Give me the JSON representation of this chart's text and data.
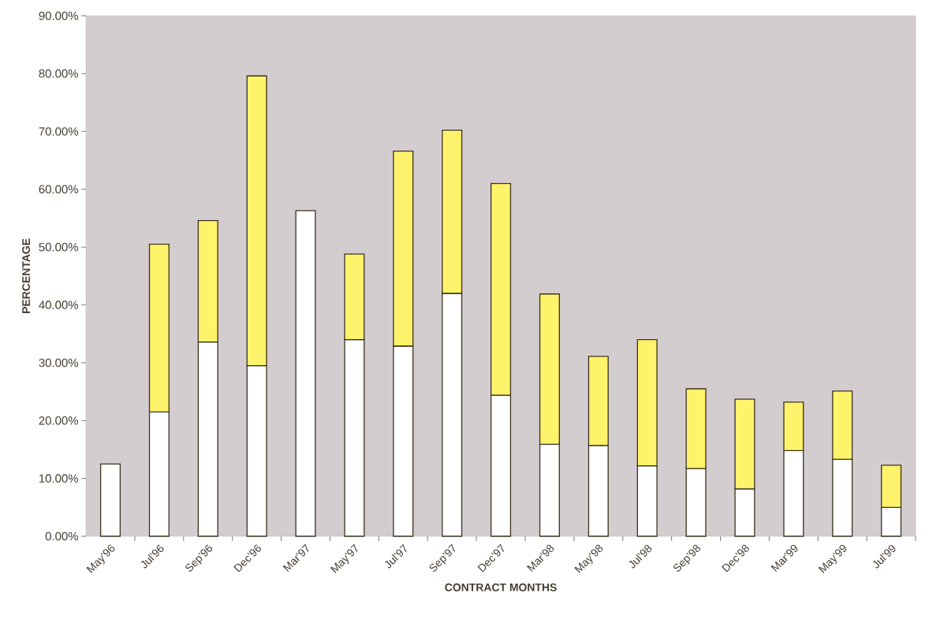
{
  "chart_data": {
    "type": "bar",
    "stacked": true,
    "xlabel": "CONTRACT MONTHS",
    "ylabel": "PERCENTAGE",
    "categories": [
      "May'96",
      "Jul'96",
      "Sep'96",
      "Dec'96",
      "Mar'97",
      "May'97",
      "Jul'97",
      "Sep'97",
      "Dec'97",
      "Mar'98",
      "May'98",
      "Jul'98",
      "Sep'98",
      "Dec'98",
      "Mar'99",
      "May'99",
      "Jul'99"
    ],
    "series": [
      {
        "color": "#ffffff",
        "values": [
          12.5,
          21.5,
          33.6,
          29.5,
          56.3,
          34.0,
          32.9,
          42.0,
          24.4,
          15.9,
          15.7,
          12.2,
          11.7,
          8.2,
          14.8,
          13.3,
          5.0
        ]
      },
      {
        "color": "#fff36b",
        "values": [
          null,
          29.0,
          21.0,
          50.1,
          null,
          14.8,
          33.7,
          28.2,
          36.6,
          26.0,
          15.4,
          21.8,
          13.8,
          15.5,
          8.4,
          11.8,
          7.3
        ]
      }
    ],
    "ylim": [
      0,
      90
    ],
    "yticks": [
      {
        "value": 0,
        "label": "0.00%"
      },
      {
        "value": 10,
        "label": "10.00%"
      },
      {
        "value": 20,
        "label": "20.00%"
      },
      {
        "value": 30,
        "label": "30.00%"
      },
      {
        "value": 40,
        "label": "40.00%"
      },
      {
        "value": 50,
        "label": "50.00%"
      },
      {
        "value": 60,
        "label": "60.00%"
      },
      {
        "value": 70,
        "label": "70.00%"
      },
      {
        "value": 80,
        "label": "80.00%"
      },
      {
        "value": 90,
        "label": "90.00%"
      }
    ],
    "grid": false
  }
}
